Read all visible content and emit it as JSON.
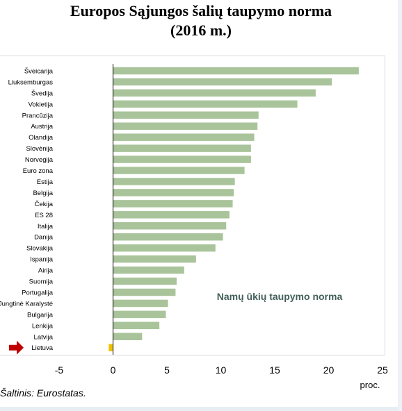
{
  "title_line1": "Europos Sąjungos šalių taupymo norma",
  "title_line2": "(2016 m.)",
  "source": "Šaltinis:  Eurostatas.",
  "colors": {
    "bar": "#a9c49a",
    "highlight_bar": "#f2c100",
    "arrow": "#c00000",
    "annotation": "#44605a"
  },
  "chart_data": {
    "type": "bar",
    "orientation": "horizontal",
    "categories": [
      "Šveicarija",
      "Liuksemburgas",
      "Švedija",
      "Vokietija",
      "Prancūzija",
      "Austrija",
      "Olandija",
      "Slovėnija",
      "Norvegija",
      "Euro zona",
      "Estija",
      "Belgija",
      "Čekija",
      "ES 28",
      "Italija",
      "Danija",
      "Slovakija",
      "Ispanija",
      "Airija",
      "Suomija",
      "Portugalija",
      "Jungtinė Karalystė",
      "Bulgarija",
      "Lenkija",
      "Latvija",
      "Lietuva"
    ],
    "values": [
      22.8,
      20.3,
      18.8,
      17.1,
      13.5,
      13.4,
      13.1,
      12.8,
      12.8,
      12.2,
      11.3,
      11.2,
      11.1,
      10.8,
      10.5,
      10.2,
      9.5,
      7.7,
      6.6,
      5.9,
      5.8,
      5.1,
      4.9,
      4.3,
      2.7,
      -0.4
    ],
    "highlight": "Lietuva",
    "annotation": "Namų ūkių taupymo norma",
    "xlabel": "proc.",
    "xlim": [
      -5,
      25
    ],
    "xticks": [
      -5,
      0,
      5,
      10,
      15,
      20,
      25
    ],
    "grid": false
  }
}
